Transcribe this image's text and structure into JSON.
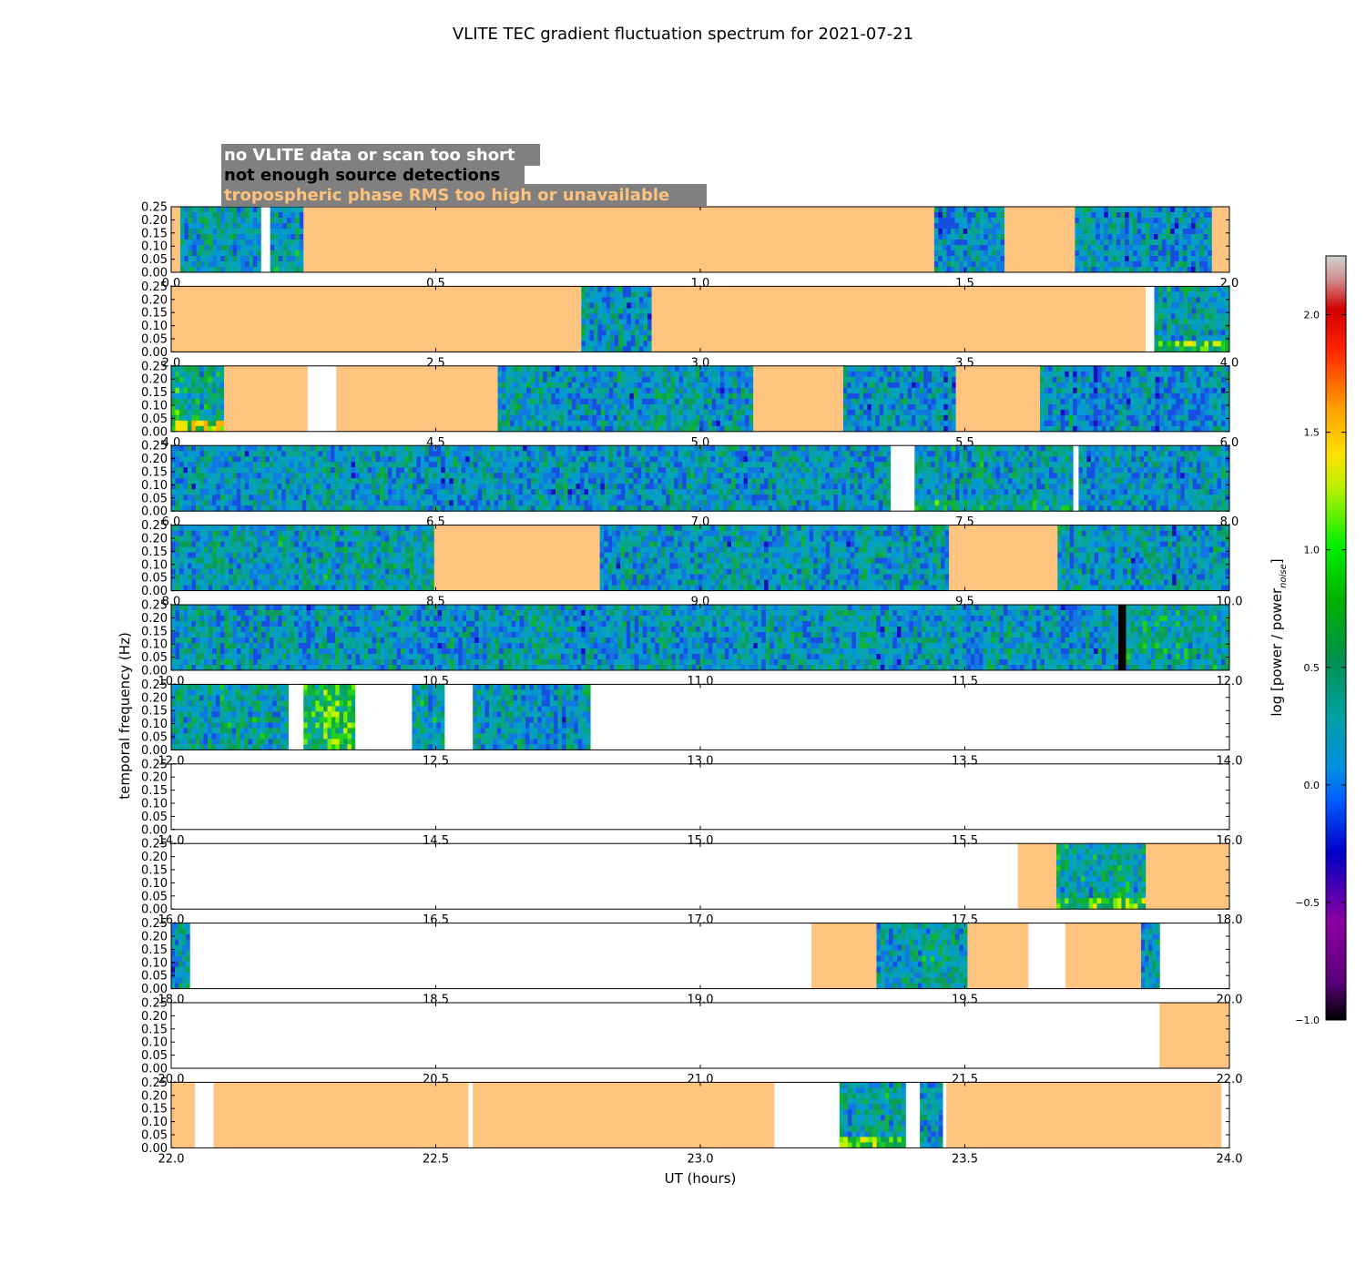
{
  "chart_data": {
    "type": "heatmap",
    "title": "VLITE TEC gradient fluctuation spectrum for 2021-07-21",
    "xlabel": "UT (hours)",
    "ylabel": "temporal frequency (Hz)",
    "ylim": [
      0,
      0.25
    ],
    "y_ticks": [
      "0.00",
      "0.05",
      "0.10",
      "0.15",
      "0.20",
      "0.25"
    ],
    "colorbar": {
      "label": "log [power / power",
      "label_subscript": "noise",
      "label_end": "]",
      "range": [
        -1.0,
        2.25
      ],
      "ticks": [
        "−1.0",
        "−0.5",
        "0.0",
        "0.5",
        "1.0",
        "1.5",
        "2.0"
      ],
      "tick_values": [
        -1.0,
        -0.5,
        0.0,
        0.5,
        1.0,
        1.5,
        2.0
      ]
    },
    "legend": [
      {
        "label": "no VLITE data or scan too short",
        "text_color": "#ffffff"
      },
      {
        "label": "not enough source detections",
        "text_color": "#000000"
      },
      {
        "label": "tropospheric phase RMS too high or unavailable",
        "text_color": "#ffc27d"
      }
    ],
    "colors": {
      "tropo": "#ffc47f",
      "no_data": "#ffffff",
      "no_detections": "#000000",
      "legend_box": "#808080"
    },
    "rows": [
      {
        "range": [
          0,
          2
        ],
        "ticks": [
          "0.0",
          "0.5",
          "1.0",
          "1.5",
          "2.0"
        ],
        "segments": [
          {
            "s": 0.0,
            "e": 0.017,
            "k": "tropo"
          },
          {
            "s": 0.017,
            "e": 0.17,
            "k": "data",
            "m": 0.1
          },
          {
            "s": 0.17,
            "e": 0.187,
            "k": "no_data"
          },
          {
            "s": 0.187,
            "e": 0.25,
            "k": "data",
            "m": 0.2
          },
          {
            "s": 0.25,
            "e": 1.442,
            "k": "tropo"
          },
          {
            "s": 1.442,
            "e": 1.575,
            "k": "data",
            "m": 0.05
          },
          {
            "s": 1.575,
            "e": 1.708,
            "k": "tropo"
          },
          {
            "s": 1.708,
            "e": 1.967,
            "k": "data",
            "m": 0.05
          },
          {
            "s": 1.967,
            "e": 2.0,
            "k": "tropo"
          }
        ]
      },
      {
        "range": [
          2,
          4
        ],
        "ticks": [
          "2.0",
          "2.5",
          "3.0",
          "3.5",
          "4.0"
        ],
        "segments": [
          {
            "s": 2.0,
            "e": 2.775,
            "k": "tropo"
          },
          {
            "s": 2.775,
            "e": 2.908,
            "k": "data",
            "m": 0.05
          },
          {
            "s": 2.908,
            "e": 3.842,
            "k": "tropo"
          },
          {
            "s": 3.842,
            "e": 3.858,
            "k": "no_data"
          },
          {
            "s": 3.858,
            "e": 4.0,
            "k": "data",
            "m": 0.2,
            "low": 0.6
          }
        ]
      },
      {
        "range": [
          4,
          6
        ],
        "ticks": [
          "4.0",
          "4.5",
          "5.0",
          "5.5",
          "6.0"
        ],
        "segments": [
          {
            "s": 4.0,
            "e": 4.1,
            "k": "data",
            "m": 0.3,
            "low": 0.8
          },
          {
            "s": 4.1,
            "e": 4.258,
            "k": "tropo"
          },
          {
            "s": 4.258,
            "e": 4.312,
            "k": "no_data"
          },
          {
            "s": 4.312,
            "e": 4.617,
            "k": "tropo"
          },
          {
            "s": 4.617,
            "e": 5.1,
            "k": "data",
            "m": 0.1
          },
          {
            "s": 5.1,
            "e": 5.27,
            "k": "tropo"
          },
          {
            "s": 5.27,
            "e": 5.483,
            "k": "data",
            "m": 0.05
          },
          {
            "s": 5.483,
            "e": 5.642,
            "k": "tropo"
          },
          {
            "s": 5.642,
            "e": 6.0,
            "k": "data",
            "m": 0.05
          }
        ]
      },
      {
        "range": [
          6,
          8
        ],
        "ticks": [
          "6.0",
          "6.5",
          "7.0",
          "7.5",
          "8.0"
        ],
        "segments": [
          {
            "s": 6.0,
            "e": 7.36,
            "k": "data",
            "m": 0.08
          },
          {
            "s": 7.36,
            "e": 7.405,
            "k": "no_data"
          },
          {
            "s": 7.405,
            "e": 7.705,
            "k": "data",
            "m": 0.15,
            "low": 0.3
          },
          {
            "s": 7.705,
            "e": 7.715,
            "k": "no_data"
          },
          {
            "s": 7.715,
            "e": 8.0,
            "k": "data",
            "m": 0.1
          }
        ]
      },
      {
        "range": [
          8,
          10
        ],
        "ticks": [
          "8.0",
          "8.5",
          "9.0",
          "9.5",
          "10.0"
        ],
        "segments": [
          {
            "s": 8.0,
            "e": 8.497,
            "k": "data",
            "m": 0.15
          },
          {
            "s": 8.497,
            "e": 8.81,
            "k": "tropo"
          },
          {
            "s": 8.81,
            "e": 9.47,
            "k": "data",
            "m": 0.1
          },
          {
            "s": 9.47,
            "e": 9.675,
            "k": "tropo"
          },
          {
            "s": 9.675,
            "e": 10.0,
            "k": "data",
            "m": 0.1
          }
        ]
      },
      {
        "range": [
          10,
          12
        ],
        "ticks": [
          "10.0",
          "10.5",
          "11.0",
          "11.5",
          "12.0"
        ],
        "segments": [
          {
            "s": 10.0,
            "e": 11.79,
            "k": "data",
            "m": 0.1
          },
          {
            "s": 11.79,
            "e": 11.805,
            "k": "no_detections"
          },
          {
            "s": 11.805,
            "e": 12.0,
            "k": "data",
            "m": 0.25
          }
        ]
      },
      {
        "range": [
          12,
          14
        ],
        "ticks": [
          "12.0",
          "12.5",
          "13.0",
          "13.5",
          "14.0"
        ],
        "segments": [
          {
            "s": 12.0,
            "e": 12.222,
            "k": "data",
            "m": 0.2
          },
          {
            "s": 12.222,
            "e": 12.25,
            "k": "no_data"
          },
          {
            "s": 12.25,
            "e": 12.348,
            "k": "data",
            "m": 0.6
          },
          {
            "s": 12.348,
            "e": 12.455,
            "k": "no_data"
          },
          {
            "s": 12.455,
            "e": 12.517,
            "k": "data",
            "m": 0.2
          },
          {
            "s": 12.517,
            "e": 12.57,
            "k": "no_data"
          },
          {
            "s": 12.57,
            "e": 12.792,
            "k": "data",
            "m": 0.1
          }
        ]
      },
      {
        "range": [
          14,
          16
        ],
        "ticks": [
          "14.0",
          "14.5",
          "15.0",
          "15.5",
          "16.0"
        ],
        "segments": []
      },
      {
        "range": [
          16,
          18
        ],
        "ticks": [
          "16.0",
          "16.5",
          "17.0",
          "17.5",
          "18.0"
        ],
        "segments": [
          {
            "s": 17.6,
            "e": 17.673,
            "k": "tropo"
          },
          {
            "s": 17.673,
            "e": 17.842,
            "k": "data",
            "m": 0.3,
            "low": 0.5
          },
          {
            "s": 17.842,
            "e": 18.0,
            "k": "tropo"
          }
        ]
      },
      {
        "range": [
          18,
          20
        ],
        "ticks": [
          "18.0",
          "18.5",
          "19.0",
          "19.5",
          "20.0"
        ],
        "segments": [
          {
            "s": 18.0,
            "e": 18.035,
            "k": "data",
            "m": 0.05
          },
          {
            "s": 19.21,
            "e": 19.333,
            "k": "tropo"
          },
          {
            "s": 19.333,
            "e": 19.505,
            "k": "data",
            "m": 0.2
          },
          {
            "s": 19.505,
            "e": 19.62,
            "k": "tropo"
          },
          {
            "s": 19.69,
            "e": 19.833,
            "k": "tropo"
          },
          {
            "s": 19.833,
            "e": 19.868,
            "k": "data",
            "m": 0.05
          }
        ]
      },
      {
        "range": [
          20,
          22
        ],
        "ticks": [
          "20.0",
          "20.5",
          "21.0",
          "21.5",
          "22.0"
        ],
        "segments": [
          {
            "s": 21.868,
            "e": 22.0,
            "k": "tropo"
          }
        ]
      },
      {
        "range": [
          22,
          24
        ],
        "ticks": [
          "22.0",
          "22.5",
          "23.0",
          "23.5",
          "24.0"
        ],
        "segments": [
          {
            "s": 22.0,
            "e": 22.045,
            "k": "tropo"
          },
          {
            "s": 22.08,
            "e": 22.562,
            "k": "tropo"
          },
          {
            "s": 22.57,
            "e": 23.14,
            "k": "tropo"
          },
          {
            "s": 23.263,
            "e": 23.388,
            "k": "data",
            "m": 0.2,
            "low": 0.6
          },
          {
            "s": 23.415,
            "e": 23.458,
            "k": "data",
            "m": 0.05
          },
          {
            "s": 23.465,
            "e": 23.985,
            "k": "tropo"
          }
        ]
      }
    ]
  }
}
